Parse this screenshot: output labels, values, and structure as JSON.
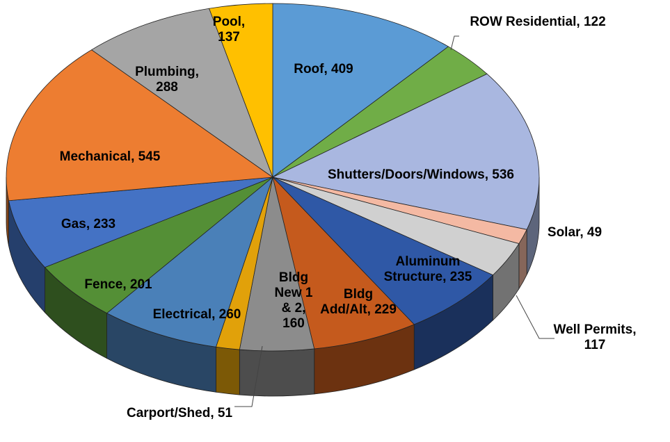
{
  "chart_data": {
    "type": "pie3d",
    "categories": [
      "Roof",
      "ROW Residential",
      "Shutters/Doors/Windows",
      "Solar",
      "Well Permits",
      "Aluminum Structure",
      "Bldg Add/Alt",
      "Bldg New 1 & 2",
      "Carport/Shed",
      "Electrical",
      "Fence",
      "Gas",
      "Mechanical",
      "Plumbing",
      "Pool"
    ],
    "values": [
      409,
      122,
      536,
      49,
      117,
      235,
      229,
      160,
      51,
      260,
      201,
      233,
      545,
      288,
      137
    ],
    "value_labels": [
      "Roof, 409",
      "ROW Residential, 122",
      "Shutters/Doors/Windows, 536",
      "Solar, 49",
      "Well Permits, 117",
      "Aluminum Structure, 235",
      "Bldg Add/Alt, 229",
      "Bldg New 1 & 2, 160",
      "Carport/Shed, 51",
      "Electrical, 260",
      "Fence, 201",
      "Gas, 233",
      "Mechanical, 545",
      "Plumbing, 288",
      "Pool, 137"
    ],
    "colors": [
      "#5b9bd5",
      "#70ad47",
      "#a9b7e0",
      "#f4b9a3",
      "#d0d0d0",
      "#2f58a6",
      "#c55a1d",
      "#8c8c8c",
      "#e1a10a",
      "#4a80b8",
      "#548f36",
      "#4472c4",
      "#ed7d31",
      "#a5a5a5",
      "#ffc000"
    ]
  }
}
